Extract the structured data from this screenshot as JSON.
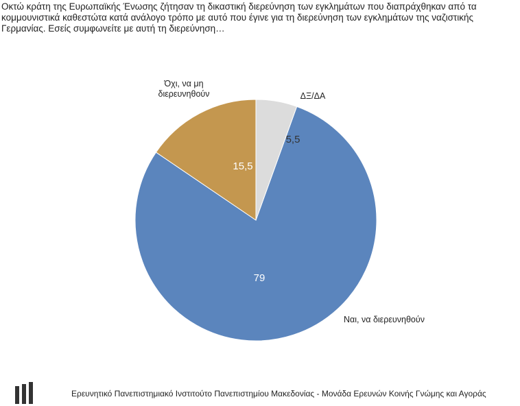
{
  "question": {
    "text": "Οκτώ κράτη της Ευρωπαϊκής Ένωσης ζήτησαν τη δικαστική διερεύνηση των εγκλημάτων που διαπράχθηκαν από τα κομμουνιστικά καθεστώτα κατά ανάλογο τρόπο με αυτό που έγινε για τη διερεύνηση των εγκλημάτων της ναζιστικής Γερμανίας. Εσείς συμφωνείτε με αυτή τη διερεύνηση…"
  },
  "chart_data": {
    "type": "pie",
    "title": "",
    "slices": [
      {
        "label": "Ναι, να διερευνηθούν",
        "value": 79,
        "value_label": "79",
        "color": "#5b85bd"
      },
      {
        "label": "Όχι, να μη διερευνηθούν",
        "label_lines": [
          "Όχι, να μη",
          "διερευνηθούν"
        ],
        "value": 15.5,
        "value_label": "15,5",
        "color": "#c4974f"
      },
      {
        "label": "ΔΞ/ΔΑ",
        "value": 5.5,
        "value_label": "5,5",
        "color": "#dcdcdc"
      }
    ]
  },
  "footer": {
    "institute": "Ερευνητικό Πανεπιστημιακό Ινστιτούτο Πανεπιστημίου Μακεδονίας - Μονάδα Ερευνών Κοινής Γνώμης και Αγοράς",
    "logo_icon": "institute-logo-icon"
  }
}
